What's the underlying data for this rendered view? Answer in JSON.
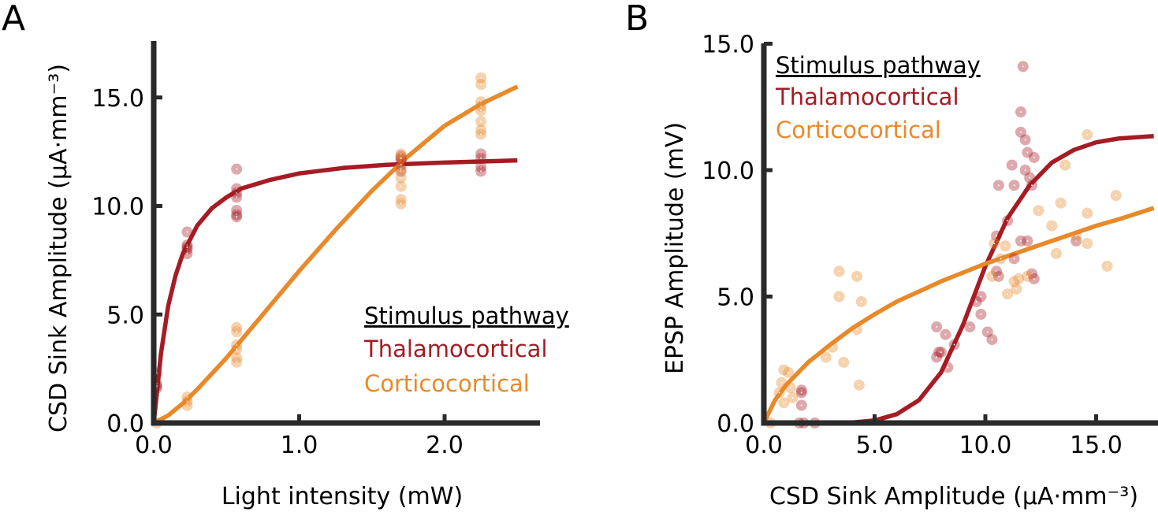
{
  "colors": {
    "thalamocortical": "#a51c24",
    "corticocortical": "#e8892a",
    "axis": "#2a2a2a",
    "text": "#000000"
  },
  "chart_data": [
    {
      "panel": "A",
      "type": "scatter",
      "title": "",
      "xlabel": "Light intensity (mW)",
      "ylabel": "CSD Sink Amplitude (µA·mm⁻³)",
      "xlim": [
        0,
        2.66
      ],
      "ylim": [
        0,
        17.6
      ],
      "xticks": [
        0,
        1,
        2
      ],
      "xtick_labels": [
        "0.0",
        "1.0",
        "2.0"
      ],
      "yticks": [
        0,
        5,
        10,
        15
      ],
      "ytick_labels": [
        "0.0",
        "5.0",
        "10.0",
        "15.0"
      ],
      "grid": false,
      "legend": {
        "title": "Stimulus pathway",
        "placement": "lower-right",
        "entries": [
          "Thalamocortical",
          "Corticocortical"
        ]
      },
      "series": [
        {
          "name": "Thalamocortical",
          "color_key": "thalamocortical",
          "points": [
            [
              0.02,
              1.6
            ],
            [
              0.02,
              1.8
            ],
            [
              0.02,
              2.3
            ],
            [
              0.02,
              1.7
            ],
            [
              0.23,
              8.8
            ],
            [
              0.23,
              8.2
            ],
            [
              0.23,
              8.0
            ],
            [
              0.23,
              7.8
            ],
            [
              0.23,
              8.1
            ],
            [
              0.57,
              11.7
            ],
            [
              0.57,
              10.8
            ],
            [
              0.57,
              10.6
            ],
            [
              0.57,
              10.4
            ],
            [
              0.57,
              9.8
            ],
            [
              0.57,
              9.6
            ],
            [
              0.57,
              9.5
            ],
            [
              1.7,
              12.3
            ],
            [
              1.7,
              12.1
            ],
            [
              1.7,
              11.9
            ],
            [
              1.7,
              12.2
            ],
            [
              1.7,
              11.6
            ],
            [
              2.25,
              12.4
            ],
            [
              2.25,
              12.2
            ],
            [
              2.25,
              11.8
            ],
            [
              2.25,
              11.6
            ]
          ],
          "fit": {
            "model": "saturating",
            "x": [
              0,
              0.05,
              0.1,
              0.15,
              0.2,
              0.3,
              0.4,
              0.5,
              0.6,
              0.8,
              1.0,
              1.3,
              1.6,
              2.0,
              2.5
            ],
            "y": [
              0,
              3.2,
              5.4,
              6.8,
              7.8,
              9.1,
              9.9,
              10.4,
              10.8,
              11.2,
              11.5,
              11.75,
              11.9,
              12.0,
              12.1
            ]
          }
        },
        {
          "name": "Corticocortical",
          "color_key": "corticocortical",
          "points": [
            [
              0.02,
              0.0
            ],
            [
              0.23,
              1.2
            ],
            [
              0.23,
              1.0
            ],
            [
              0.23,
              0.8
            ],
            [
              0.57,
              4.4
            ],
            [
              0.57,
              4.2
            ],
            [
              0.57,
              3.6
            ],
            [
              0.57,
              3.4
            ],
            [
              0.57,
              3.0
            ],
            [
              0.57,
              2.8
            ],
            [
              1.7,
              12.4
            ],
            [
              1.7,
              12.2
            ],
            [
              1.7,
              11.7
            ],
            [
              1.7,
              11.3
            ],
            [
              1.7,
              10.9
            ],
            [
              1.7,
              10.3
            ],
            [
              1.7,
              10.1
            ],
            [
              2.25,
              15.9
            ],
            [
              2.25,
              15.6
            ],
            [
              2.25,
              14.8
            ],
            [
              2.25,
              14.6
            ],
            [
              2.25,
              14.4
            ],
            [
              2.25,
              13.9
            ],
            [
              2.25,
              13.5
            ],
            [
              2.25,
              13.3
            ]
          ],
          "fit": {
            "model": "sigmoid",
            "x": [
              0,
              0.1,
              0.2,
              0.3,
              0.5,
              0.75,
              1.0,
              1.25,
              1.5,
              1.75,
              2.0,
              2.25,
              2.5
            ],
            "y": [
              0,
              0.35,
              0.9,
              1.55,
              3.0,
              5.0,
              7.0,
              8.9,
              10.7,
              12.3,
              13.7,
              14.7,
              15.5
            ]
          }
        }
      ]
    },
    {
      "panel": "B",
      "type": "scatter",
      "title": "",
      "xlabel": "CSD Sink Amplitude (µA·mm⁻³)",
      "ylabel": "EPSP Amplitude (mV)",
      "xlim": [
        0,
        17.8
      ],
      "ylim": [
        0,
        15.0
      ],
      "xticks": [
        0,
        5,
        10,
        15
      ],
      "xtick_labels": [
        "0.0",
        "5.0",
        "10.0",
        "15.0"
      ],
      "yticks": [
        0,
        5,
        10,
        15
      ],
      "ytick_labels": [
        "0.0",
        "5.0",
        "10.0",
        "15.0"
      ],
      "grid": false,
      "legend": {
        "title": "Stimulus pathway",
        "placement": "top-left",
        "entries": [
          "Thalamocortical",
          "Corticocortical"
        ]
      },
      "series": [
        {
          "name": "Thalamocortical",
          "color_key": "thalamocortical",
          "points": [
            [
              1.7,
              1.3
            ],
            [
              1.7,
              1.2
            ],
            [
              1.7,
              0.7
            ],
            [
              1.6,
              0.0
            ],
            [
              1.8,
              0.0
            ],
            [
              2.3,
              0.0
            ],
            [
              7.8,
              3.8
            ],
            [
              7.9,
              2.8
            ],
            [
              7.8,
              2.6
            ],
            [
              8.2,
              3.5
            ],
            [
              8.3,
              2.2
            ],
            [
              8.6,
              3.1
            ],
            [
              8.0,
              2.8
            ],
            [
              9.3,
              3.8
            ],
            [
              9.6,
              4.8
            ],
            [
              9.8,
              4.3
            ],
            [
              9.8,
              5.0
            ],
            [
              10.1,
              3.6
            ],
            [
              10.3,
              3.3
            ],
            [
              10.5,
              6.0
            ],
            [
              10.6,
              5.8
            ],
            [
              10.5,
              7.4
            ],
            [
              11.0,
              8.0
            ],
            [
              11.3,
              6.5
            ],
            [
              11.6,
              7.2
            ],
            [
              10.6,
              9.4
            ],
            [
              11.2,
              10.2
            ],
            [
              11.3,
              9.4
            ],
            [
              11.8,
              10.0
            ],
            [
              11.9,
              10.7
            ],
            [
              12.2,
              10.5
            ],
            [
              11.6,
              11.5
            ],
            [
              11.8,
              11.2
            ],
            [
              11.6,
              12.3
            ],
            [
              11.7,
              14.1
            ],
            [
              12.0,
              9.7
            ],
            [
              12.1,
              9.4
            ],
            [
              12.1,
              5.9
            ],
            [
              12.2,
              5.7
            ],
            [
              11.9,
              7.2
            ],
            [
              14.1,
              7.2
            ]
          ],
          "fit": {
            "model": "sigmoid",
            "x": [
              0,
              4,
              5,
              6,
              7,
              8,
              9,
              10,
              11,
              12,
              13,
              14,
              15,
              16,
              17.6
            ],
            "y": [
              0,
              0.02,
              0.1,
              0.35,
              0.9,
              2.0,
              3.9,
              6.2,
              8.1,
              9.4,
              10.3,
              10.8,
              11.1,
              11.25,
              11.35
            ]
          }
        },
        {
          "name": "Corticocortical",
          "color_key": "corticocortical",
          "points": [
            [
              0.9,
              2.1
            ],
            [
              1.1,
              2.0
            ],
            [
              0.8,
              1.6
            ],
            [
              0.7,
              1.2
            ],
            [
              0.9,
              0.8
            ],
            [
              1.3,
              1.0
            ],
            [
              1.2,
              1.4
            ],
            [
              0.3,
              0.0
            ],
            [
              2.8,
              2.6
            ],
            [
              3.1,
              3.0
            ],
            [
              3.6,
              2.4
            ],
            [
              4.3,
              1.5
            ],
            [
              3.4,
              6.0
            ],
            [
              4.2,
              5.8
            ],
            [
              3.4,
              5.0
            ],
            [
              4.4,
              4.8
            ],
            [
              4.2,
              3.7
            ],
            [
              10.4,
              7.1
            ],
            [
              10.7,
              6.5
            ],
            [
              10.9,
              7.0
            ],
            [
              11.3,
              5.6
            ],
            [
              11.5,
              5.7
            ],
            [
              11.4,
              5.3
            ],
            [
              11.0,
              5.1
            ],
            [
              10.3,
              5.8
            ],
            [
              11.9,
              5.8
            ],
            [
              12.4,
              8.4
            ],
            [
              13.0,
              7.8
            ],
            [
              13.4,
              8.7
            ],
            [
              13.2,
              6.7
            ],
            [
              13.6,
              10.2
            ],
            [
              14.1,
              7.4
            ],
            [
              14.6,
              8.3
            ],
            [
              14.6,
              7.1
            ],
            [
              14.6,
              11.4
            ],
            [
              15.5,
              6.2
            ],
            [
              15.9,
              9.0
            ]
          ],
          "fit": {
            "model": "saturating",
            "x": [
              0,
              0.5,
              1,
              2,
              3,
              4,
              5,
              6,
              7,
              8,
              9,
              10,
              11,
              12,
              13,
              14,
              15,
              16,
              17.6
            ],
            "y": [
              0,
              0.9,
              1.5,
              2.4,
              3.1,
              3.75,
              4.3,
              4.8,
              5.2,
              5.6,
              5.95,
              6.3,
              6.6,
              6.9,
              7.2,
              7.5,
              7.8,
              8.05,
              8.5
            ]
          }
        }
      ]
    }
  ],
  "panels": {
    "A": {
      "letter": "A"
    },
    "B": {
      "letter": "B"
    }
  }
}
